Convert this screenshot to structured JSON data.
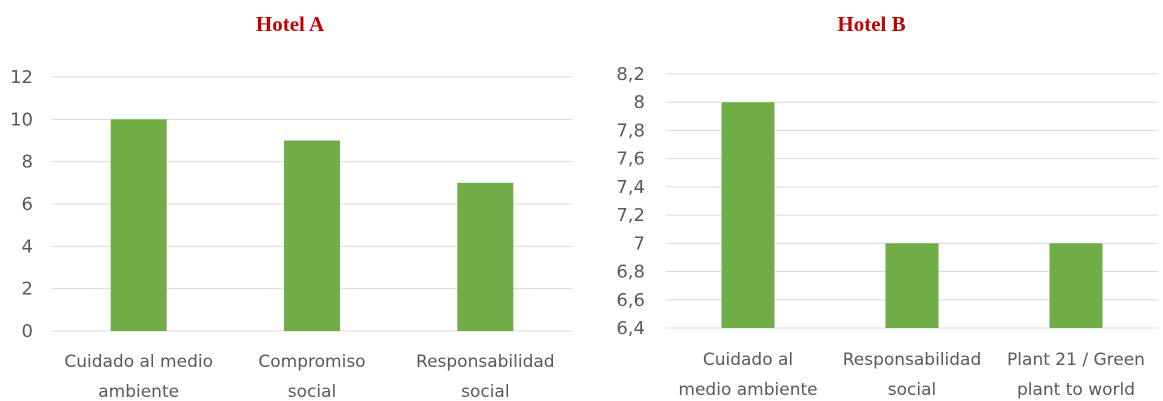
{
  "colors": {
    "bar": "#70ad47",
    "title": "#c00000",
    "grid": "#d9d9d9",
    "text": "#595959"
  },
  "chart_data": [
    {
      "type": "bar",
      "title": "Hotel A",
      "categories": [
        "Cuidado al medio ambiente",
        "Compromiso social",
        "Responsabilidad social"
      ],
      "category_lines": [
        [
          "Cuidado al medio",
          "ambiente"
        ],
        [
          "Compromiso",
          "social"
        ],
        [
          "Responsabilidad",
          "social"
        ]
      ],
      "values": [
        10,
        9,
        7
      ],
      "ylim": [
        0,
        12
      ],
      "yticks": [
        "0",
        "2",
        "4",
        "6",
        "8",
        "10",
        "12"
      ],
      "grid": true
    },
    {
      "type": "bar",
      "title": "Hotel B",
      "categories": [
        "Cuidado al medio ambiente",
        "Responsabilidad social",
        "Plant 21 / Green plant to world"
      ],
      "category_lines": [
        [
          "Cuidado al",
          "medio ambiente"
        ],
        [
          "Responsabilidad",
          "social"
        ],
        [
          "Plant 21 / Green",
          "plant to world"
        ]
      ],
      "values": [
        8,
        7,
        7
      ],
      "ylim": [
        6.4,
        8.2
      ],
      "yticks": [
        "6,4",
        "6,6",
        "6,8",
        "7",
        "7,2",
        "7,4",
        "7,6",
        "7,8",
        "8",
        "8,2"
      ],
      "grid": true
    }
  ]
}
